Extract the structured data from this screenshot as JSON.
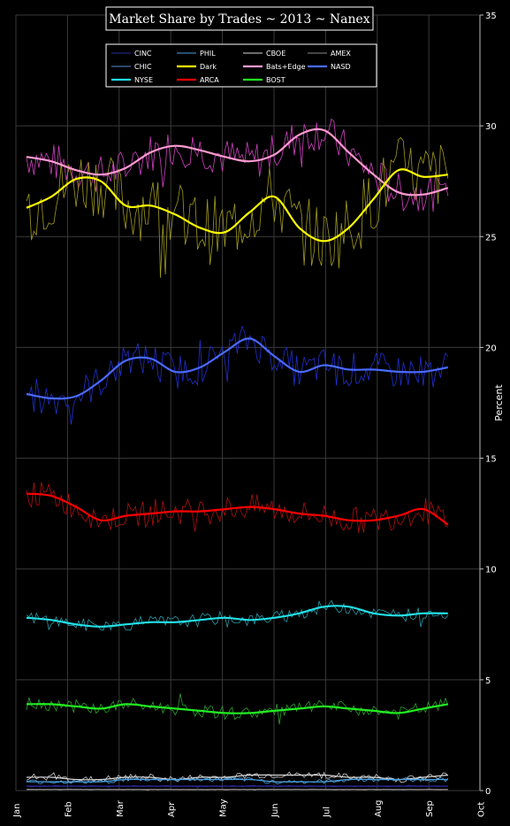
{
  "chart_data": {
    "type": "line",
    "title": "Market Share by Trades ~ 2013 ~ Nanex",
    "ylabel": "Percent",
    "xlabel": "",
    "ylim": [
      0,
      35
    ],
    "yticks": [
      "0",
      "5",
      "10",
      "15",
      "20",
      "25",
      "30",
      "35"
    ],
    "xticks": [
      "Jan",
      "Feb",
      "Mar",
      "Apr",
      "May",
      "Jun",
      "Jul",
      "Aug",
      "Sep",
      "Oct"
    ],
    "grid": true,
    "legend_position": "top-center",
    "legend": [
      {
        "name": "CINC",
        "color": "#2a2aa0"
      },
      {
        "name": "PHIL",
        "color": "#4aa0e0"
      },
      {
        "name": "CBOE",
        "color": "#d8d8d8"
      },
      {
        "name": "AMEX",
        "color": "#8a8a8a"
      },
      {
        "name": "CHIC",
        "color": "#5a8ad0"
      },
      {
        "name": "Dark",
        "color": "#ffff00"
      },
      {
        "name": "Bats+Edge",
        "color": "#ff9ad0"
      },
      {
        "name": "NASD",
        "color": "#4a6aff"
      },
      {
        "name": "NYSE",
        "color": "#22e0e8"
      },
      {
        "name": "ARCA",
        "color": "#ff0000"
      },
      {
        "name": "BOST",
        "color": "#22ee22"
      }
    ],
    "x_dates": [
      "Jan 1",
      "Jan 15",
      "Feb 1",
      "Feb 15",
      "Mar 1",
      "Mar 15",
      "Apr 1",
      "Apr 15",
      "May 1",
      "May 15",
      "Jun 1",
      "Jun 15",
      "Jul 1",
      "Jul 15",
      "Aug 1",
      "Aug 15",
      "Sep 1",
      "Sep 12"
    ],
    "series": [
      {
        "name": "Bats+Edge",
        "color": "#ff9ad0",
        "values": [
          28.6,
          28.4,
          28.0,
          27.8,
          28.1,
          28.8,
          29.1,
          28.9,
          28.6,
          28.4,
          28.7,
          29.6,
          29.8,
          28.8,
          27.8,
          27.0,
          26.9,
          27.2
        ]
      },
      {
        "name": "Dark",
        "color": "#ffff00",
        "values": [
          26.3,
          26.8,
          27.6,
          27.5,
          26.4,
          26.4,
          26.0,
          25.4,
          25.2,
          26.1,
          26.8,
          25.4,
          24.8,
          25.4,
          26.7,
          28.0,
          27.7,
          27.8
        ]
      },
      {
        "name": "NASD",
        "color": "#4a6aff",
        "values": [
          17.9,
          17.7,
          17.8,
          18.5,
          19.4,
          19.5,
          18.9,
          19.1,
          19.8,
          20.4,
          19.6,
          18.9,
          19.2,
          19.0,
          19.0,
          18.9,
          18.9,
          19.1
        ]
      },
      {
        "name": "ARCA",
        "color": "#ff0000",
        "values": [
          13.4,
          13.3,
          12.8,
          12.2,
          12.4,
          12.5,
          12.6,
          12.6,
          12.7,
          12.8,
          12.7,
          12.5,
          12.4,
          12.2,
          12.2,
          12.4,
          12.7,
          12.0
        ]
      },
      {
        "name": "NYSE",
        "color": "#22e0e8",
        "values": [
          7.8,
          7.7,
          7.5,
          7.4,
          7.5,
          7.6,
          7.6,
          7.7,
          7.8,
          7.7,
          7.8,
          8.0,
          8.3,
          8.3,
          8.0,
          7.9,
          8.0,
          8.0
        ]
      },
      {
        "name": "BOST",
        "color": "#22ee22",
        "values": [
          3.9,
          3.9,
          3.8,
          3.7,
          3.9,
          3.8,
          3.7,
          3.6,
          3.5,
          3.5,
          3.6,
          3.7,
          3.8,
          3.7,
          3.6,
          3.5,
          3.7,
          3.9
        ]
      },
      {
        "name": "CBOE",
        "color": "#d8d8d8",
        "values": [
          0.6,
          0.6,
          0.5,
          0.5,
          0.6,
          0.6,
          0.5,
          0.6,
          0.6,
          0.7,
          0.7,
          0.7,
          0.7,
          0.6,
          0.6,
          0.5,
          0.6,
          0.7
        ]
      },
      {
        "name": "PHIL",
        "color": "#4aa0e0",
        "values": [
          0.4,
          0.4,
          0.4,
          0.4,
          0.5,
          0.5,
          0.5,
          0.5,
          0.5,
          0.5,
          0.4,
          0.4,
          0.4,
          0.5,
          0.5,
          0.5,
          0.5,
          0.5
        ]
      },
      {
        "name": "CINC",
        "color": "#2a2aa0",
        "values": [
          0.2,
          0.2,
          0.2,
          0.2,
          0.2,
          0.2,
          0.2,
          0.2,
          0.2,
          0.2,
          0.2,
          0.2,
          0.2,
          0.2,
          0.2,
          0.2,
          0.2,
          0.2
        ]
      },
      {
        "name": "AMEX",
        "color": "#8a8a8a",
        "values": [
          0.05,
          0.05,
          0.05,
          0.05,
          0.05,
          0.05,
          0.05,
          0.05,
          0.05,
          0.05,
          0.05,
          0.05,
          0.05,
          0.05,
          0.05,
          0.05,
          0.05,
          0.05
        ]
      }
    ]
  }
}
